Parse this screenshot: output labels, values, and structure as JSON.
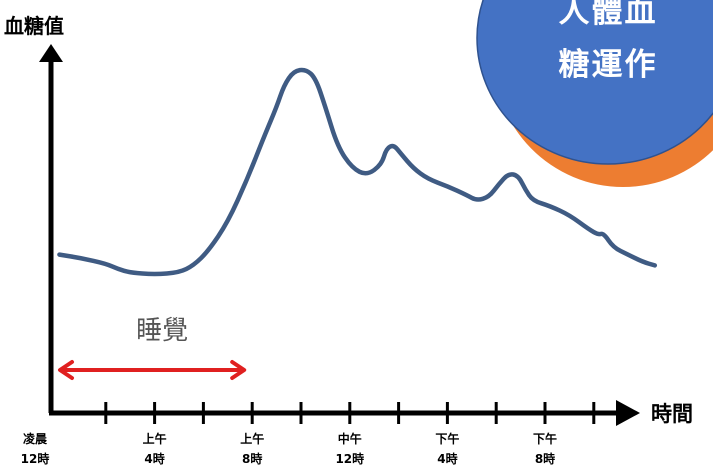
{
  "badge": {
    "line1": "人體血",
    "line2": "糖運作",
    "fill_color": "#4472c4",
    "shadow_color": "#ed7d31"
  },
  "chart_data": {
    "type": "line",
    "ylabel": "血糖值",
    "xlabel": "時間",
    "line_color": "#3f5b83",
    "ticks": [
      {
        "time": 0,
        "line1": "凌晨",
        "line2": "12時"
      },
      {
        "time": 4,
        "line1": "上午",
        "line2": "4時"
      },
      {
        "time": 8,
        "line1": "上午",
        "line2": "8時"
      },
      {
        "time": 12,
        "line1": "中午",
        "line2": "12時"
      },
      {
        "time": 16,
        "line1": "下午",
        "line2": "4時"
      },
      {
        "time": 20,
        "line1": "下午",
        "line2": "8時"
      }
    ],
    "xlim": [
      0,
      24
    ],
    "ylim": [
      0,
      100
    ],
    "series": [
      {
        "values": [
          [
            0.1,
            44
          ],
          [
            1.0,
            43
          ],
          [
            2.0,
            41.5
          ],
          [
            2.5,
            40
          ],
          [
            3.0,
            39
          ],
          [
            4.0,
            38.5
          ],
          [
            5.0,
            39
          ],
          [
            5.6,
            41
          ],
          [
            6.2,
            45
          ],
          [
            7.0,
            53
          ],
          [
            7.8,
            65
          ],
          [
            8.5,
            77
          ],
          [
            9.0,
            85
          ],
          [
            9.3,
            91
          ],
          [
            9.7,
            95
          ],
          [
            10.2,
            95.5
          ],
          [
            10.6,
            93
          ],
          [
            11.0,
            85
          ],
          [
            11.5,
            74
          ],
          [
            12.1,
            68
          ],
          [
            12.7,
            66
          ],
          [
            13.3,
            69
          ],
          [
            13.5,
            73.5
          ],
          [
            13.8,
            74.5
          ],
          [
            14.1,
            72
          ],
          [
            14.6,
            68
          ],
          [
            15.2,
            65
          ],
          [
            16.0,
            63
          ],
          [
            16.8,
            60.5
          ],
          [
            17.2,
            59
          ],
          [
            17.7,
            60
          ],
          [
            18.1,
            63.5
          ],
          [
            18.5,
            66.5
          ],
          [
            18.9,
            66
          ],
          [
            19.2,
            62
          ],
          [
            19.5,
            59
          ],
          [
            20.2,
            57.5
          ],
          [
            21.0,
            55
          ],
          [
            21.8,
            51
          ],
          [
            22.2,
            49.5
          ],
          [
            22.4,
            50
          ],
          [
            22.8,
            46
          ],
          [
            23.4,
            44
          ],
          [
            24.0,
            42
          ],
          [
            24.5,
            41
          ]
        ]
      }
    ],
    "annotations": [
      {
        "text": "睡覺",
        "span_start": 0,
        "span_end": 8,
        "arrow_color": "#e02020"
      }
    ]
  }
}
